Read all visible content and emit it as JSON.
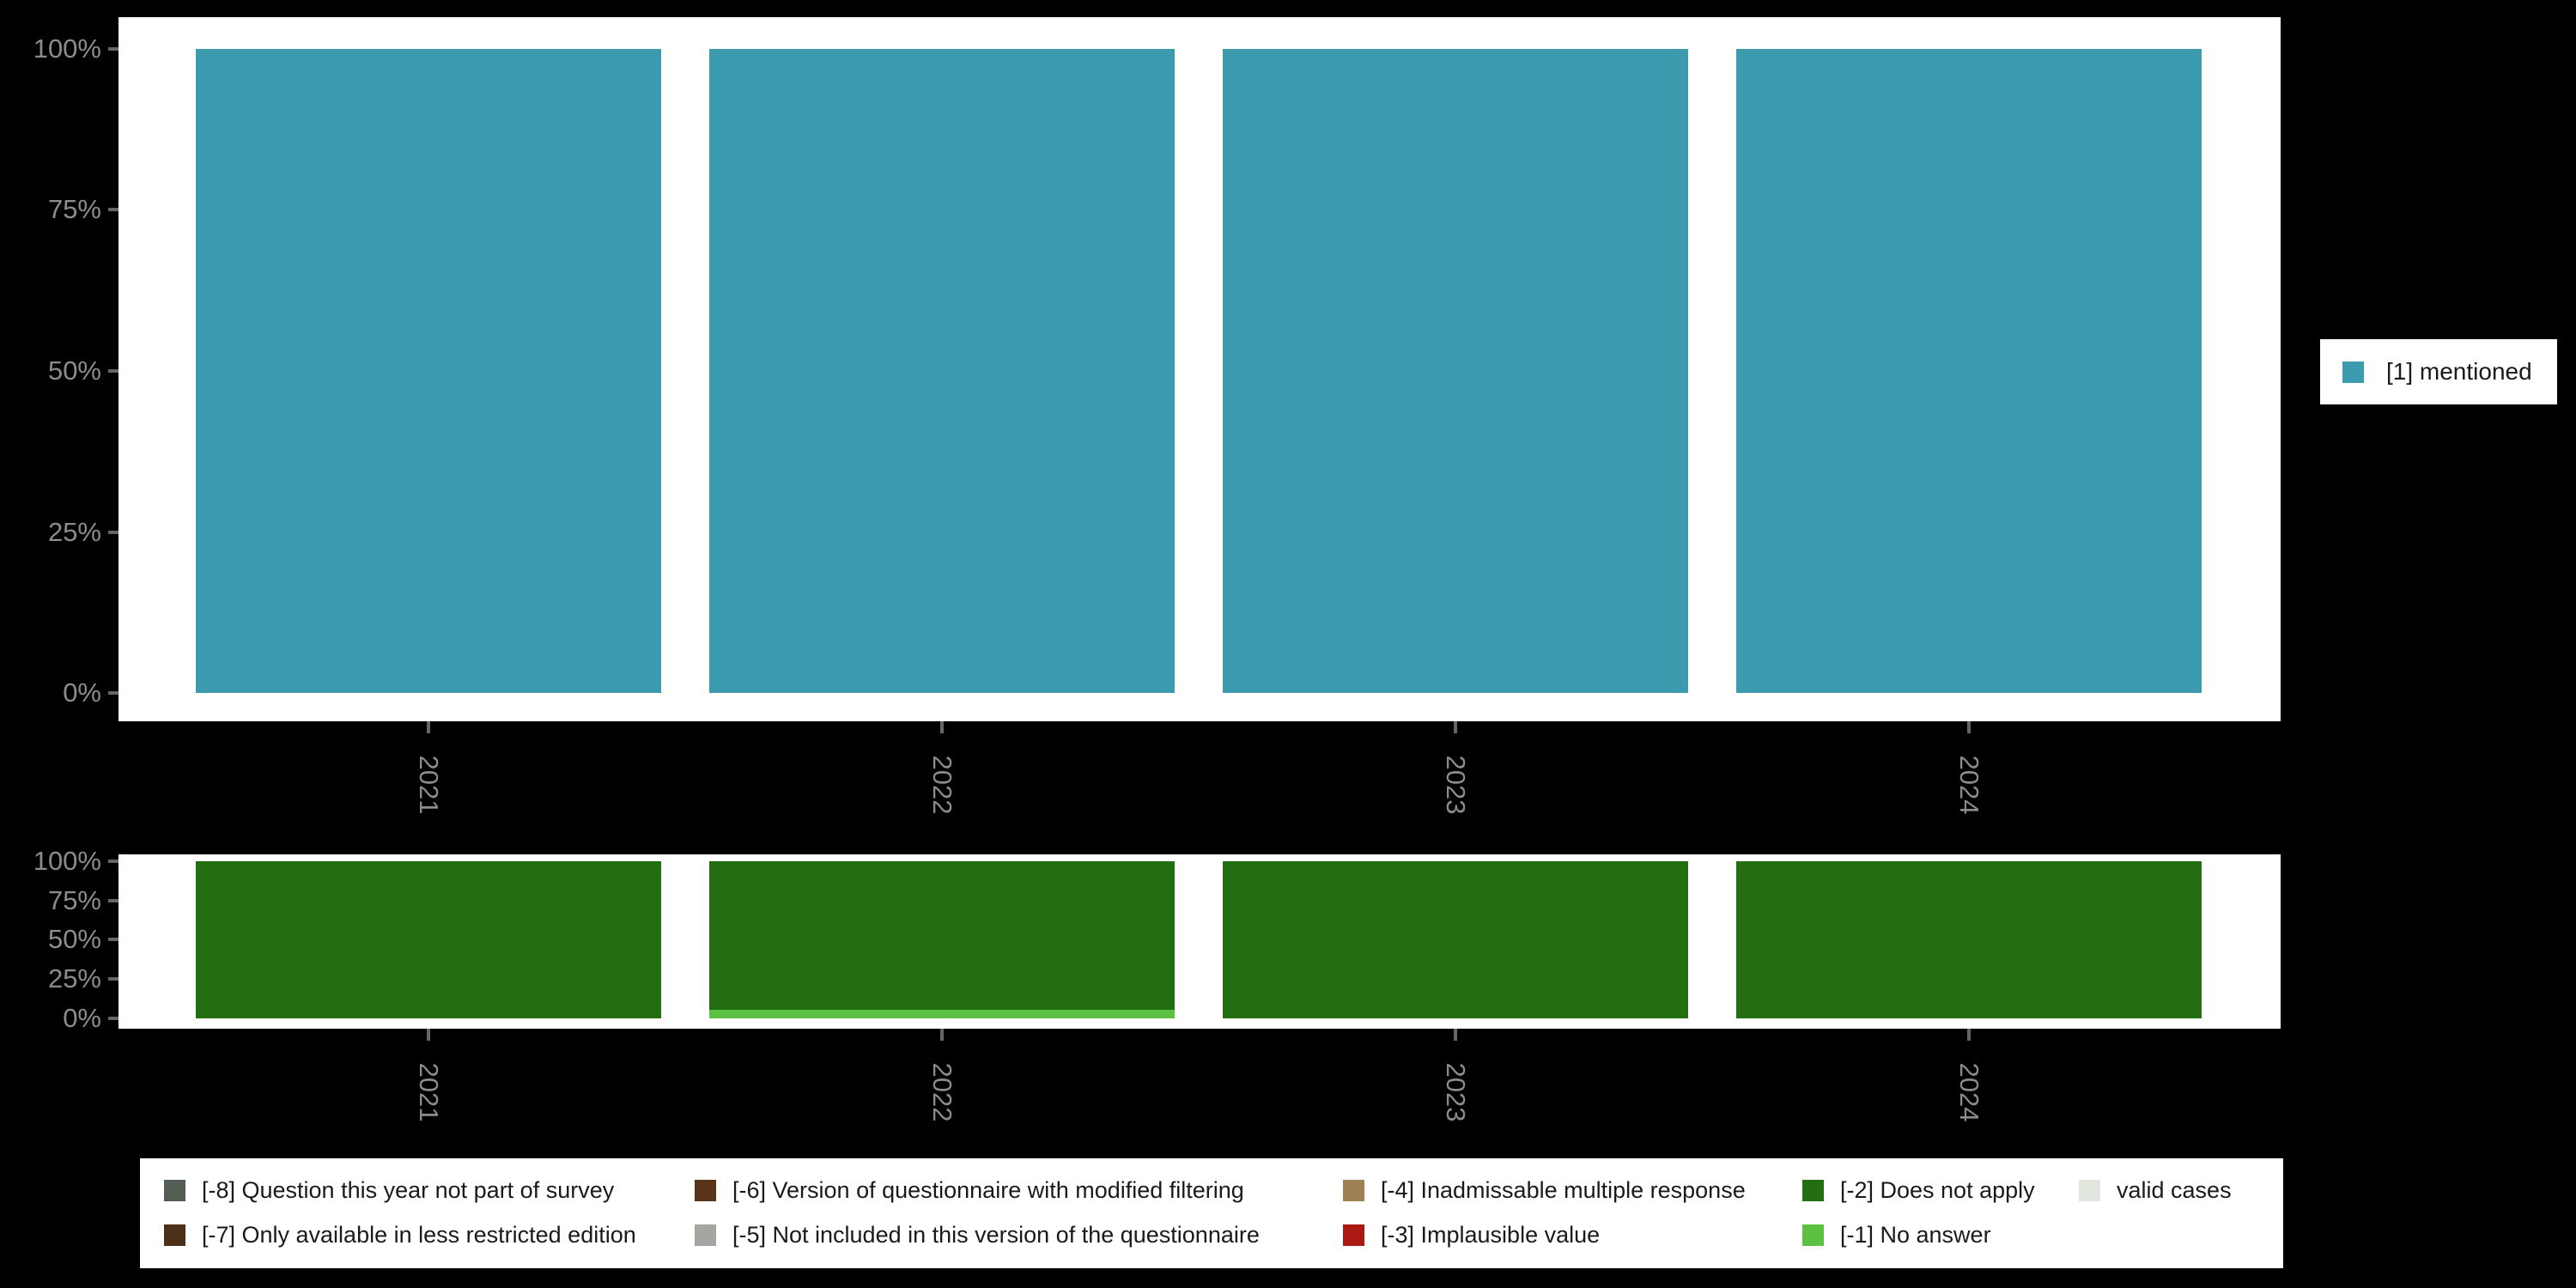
{
  "figure": {
    "background_color": "#000000",
    "panel_color": "#ffffff",
    "axis_text_color": "#8c8c8c",
    "tick_color": "#666666"
  },
  "chart_data": [
    {
      "type": "bar",
      "stacked": true,
      "title": "",
      "xlabel": "",
      "ylabel": "",
      "categories": [
        "2021",
        "2022",
        "2023",
        "2024"
      ],
      "series": [
        {
          "name": "[1] mentioned",
          "color": "#3d9bb0",
          "values": [
            100,
            100,
            100,
            100
          ]
        }
      ],
      "yticks": [
        "100%",
        "75%",
        "50%",
        "25%",
        "0%"
      ],
      "ylim": [
        0,
        100
      ],
      "grid": false,
      "legend_position": "right",
      "x_tick_label_rotation_deg": 90
    },
    {
      "type": "bar",
      "stacked": true,
      "title": "",
      "xlabel": "",
      "ylabel": "",
      "categories": [
        "2021",
        "2022",
        "2023",
        "2024"
      ],
      "series": [
        {
          "name": "[-2] Does not apply",
          "color": "#236e10",
          "values": [
            100,
            94.5,
            100,
            100
          ]
        },
        {
          "name": "[-1] No answer",
          "color": "#5cc043",
          "values": [
            0,
            5.5,
            0,
            0
          ]
        }
      ],
      "yticks": [
        "100%",
        "75%",
        "50%",
        "25%",
        "0%"
      ],
      "ylim": [
        0,
        100
      ],
      "grid": false,
      "legend_position": "bottom",
      "x_tick_label_rotation_deg": 90
    }
  ],
  "legend_right": {
    "items": [
      {
        "label": "[1] mentioned",
        "color": "#3d9bb0"
      }
    ]
  },
  "legend_bottom": {
    "columns": [
      {
        "items": [
          {
            "label": "[-8] Question this year not part of survey",
            "color": "#545d54"
          },
          {
            "label": "[-7] Only available in less restricted edition",
            "color": "#4c3018"
          }
        ]
      },
      {
        "items": [
          {
            "label": "[-6] Version of questionnaire with modified filtering",
            "color": "#59331a"
          },
          {
            "label": "[-5] Not included in this version of the questionnaire",
            "color": "#a3a6a1"
          }
        ]
      },
      {
        "items": [
          {
            "label": "[-4] Inadmissable multiple response",
            "color": "#a08055"
          },
          {
            "label": "[-3] Implausible value",
            "color": "#ab1a12"
          }
        ]
      },
      {
        "items": [
          {
            "label": "[-2] Does not apply",
            "color": "#236e10"
          },
          {
            "label": "[-1] No answer",
            "color": "#5cc043"
          }
        ]
      },
      {
        "items": [
          {
            "label": "valid cases",
            "color": "#e1e6df"
          }
        ]
      }
    ]
  }
}
